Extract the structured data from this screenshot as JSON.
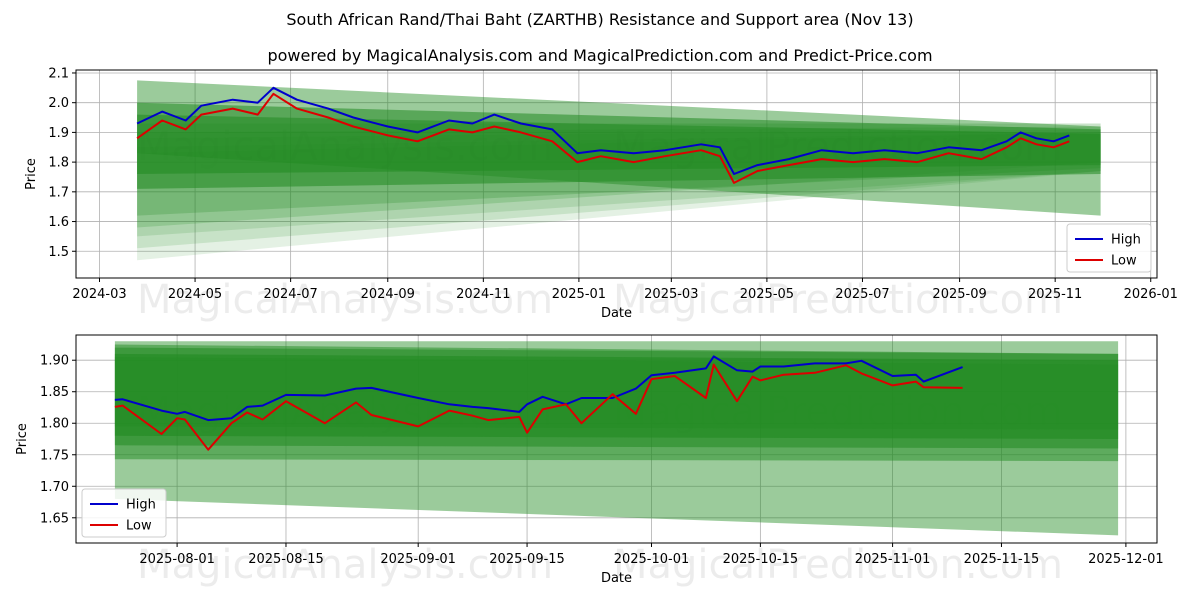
{
  "header": {
    "title": "South African Rand/Thai Baht (ZARTHB) Resistance and Support area (Nov 13)",
    "subtitle": "powered by MagicalAnalysis.com and MagicalPrediction.com and Predict-Price.com"
  },
  "colors": {
    "high": "#0000cc",
    "low": "#dd0000",
    "band": "#228B22"
  },
  "chart_data": [
    {
      "type": "line",
      "xlabel": "Date",
      "ylabel": "Price",
      "xlim": [
        "2024-02-15",
        "2026-01-05"
      ],
      "ylim": [
        1.41,
        2.11
      ],
      "x_ticks": [
        "2024-03",
        "2024-05",
        "2024-07",
        "2024-09",
        "2024-11",
        "2025-01",
        "2025-03",
        "2025-05",
        "2025-07",
        "2025-09",
        "2025-11",
        "2026-01"
      ],
      "y_ticks": [
        "1.5",
        "1.6",
        "1.7",
        "1.8",
        "1.9",
        "2.0",
        "2.1"
      ],
      "legend": {
        "position": "bottom-right",
        "entries": [
          "High",
          "Low"
        ]
      },
      "watermarks": [
        "MagicalAnalysis.com",
        "MagicalPrediction.com"
      ],
      "series": [
        {
          "name": "High",
          "x": [
            "2024-03-25",
            "2024-04-10",
            "2024-04-25",
            "2024-05-05",
            "2024-05-25",
            "2024-06-10",
            "2024-06-20",
            "2024-07-05",
            "2024-07-25",
            "2024-08-10",
            "2024-09-01",
            "2024-09-20",
            "2024-10-10",
            "2024-10-25",
            "2024-11-08",
            "2024-11-25",
            "2024-12-15",
            "2024-12-31",
            "2025-01-15",
            "2025-02-05",
            "2025-02-25",
            "2025-03-20",
            "2025-04-01",
            "2025-04-10",
            "2025-04-25",
            "2025-05-15",
            "2025-06-05",
            "2025-06-25",
            "2025-07-15",
            "2025-08-05",
            "2025-08-25",
            "2025-09-15",
            "2025-10-01",
            "2025-10-10",
            "2025-10-20",
            "2025-10-31",
            "2025-11-10"
          ],
          "values": [
            1.93,
            1.97,
            1.94,
            1.99,
            2.01,
            2.0,
            2.05,
            2.01,
            1.98,
            1.95,
            1.92,
            1.9,
            1.94,
            1.93,
            1.96,
            1.93,
            1.91,
            1.83,
            1.84,
            1.83,
            1.84,
            1.86,
            1.85,
            1.76,
            1.79,
            1.81,
            1.84,
            1.83,
            1.84,
            1.83,
            1.85,
            1.84,
            1.87,
            1.9,
            1.88,
            1.87,
            1.89
          ]
        },
        {
          "name": "Low",
          "x": [
            "2024-03-25",
            "2024-04-10",
            "2024-04-25",
            "2024-05-05",
            "2024-05-25",
            "2024-06-10",
            "2024-06-20",
            "2024-07-05",
            "2024-07-25",
            "2024-08-10",
            "2024-09-01",
            "2024-09-20",
            "2024-10-10",
            "2024-10-25",
            "2024-11-08",
            "2024-11-25",
            "2024-12-15",
            "2024-12-31",
            "2025-01-15",
            "2025-02-05",
            "2025-02-25",
            "2025-03-20",
            "2025-04-01",
            "2025-04-10",
            "2025-04-25",
            "2025-05-15",
            "2025-06-05",
            "2025-06-25",
            "2025-07-15",
            "2025-08-05",
            "2025-08-25",
            "2025-09-15",
            "2025-10-01",
            "2025-10-10",
            "2025-10-20",
            "2025-10-31",
            "2025-11-10"
          ],
          "values": [
            1.88,
            1.94,
            1.91,
            1.96,
            1.98,
            1.96,
            2.03,
            1.98,
            1.95,
            1.92,
            1.89,
            1.87,
            1.91,
            1.9,
            1.92,
            1.9,
            1.87,
            1.8,
            1.82,
            1.8,
            1.82,
            1.84,
            1.82,
            1.73,
            1.77,
            1.79,
            1.81,
            1.8,
            1.81,
            1.8,
            1.83,
            1.81,
            1.85,
            1.88,
            1.86,
            1.85,
            1.87
          ]
        }
      ],
      "bands_start": "2024-03-25",
      "bands_end": "2025-11-30",
      "bands": [
        {
          "start": [
            1.83,
            2.075
          ],
          "end": [
            1.62,
            1.92
          ],
          "opacity": 0.45
        },
        {
          "start": [
            1.71,
            2.0
          ],
          "end": [
            1.76,
            1.91
          ],
          "opacity": 0.55
        },
        {
          "start": [
            1.76,
            1.96
          ],
          "end": [
            1.79,
            1.895
          ],
          "opacity": 0.55
        },
        {
          "start": [
            1.62,
            1.93
          ],
          "end": [
            1.78,
            1.93
          ],
          "opacity": 0.25
        },
        {
          "start": [
            1.58,
            1.9
          ],
          "end": [
            1.8,
            1.92
          ],
          "opacity": 0.2
        },
        {
          "start": [
            1.55,
            1.88
          ],
          "end": [
            1.77,
            1.91
          ],
          "opacity": 0.15
        },
        {
          "start": [
            1.51,
            1.85
          ],
          "end": [
            1.77,
            1.9
          ],
          "opacity": 0.15
        },
        {
          "start": [
            1.47,
            1.83
          ],
          "end": [
            1.77,
            1.9
          ],
          "opacity": 0.12
        }
      ]
    },
    {
      "type": "line",
      "xlabel": "Date",
      "ylabel": "Price",
      "xlim": [
        "2025-07-19",
        "2025-12-05"
      ],
      "ylim": [
        1.61,
        1.94
      ],
      "x_ticks": [
        "2025-08-01",
        "2025-08-15",
        "2025-09-01",
        "2025-09-15",
        "2025-10-01",
        "2025-10-15",
        "2025-11-01",
        "2025-11-15",
        "2025-12-01"
      ],
      "y_ticks": [
        "1.65",
        "1.70",
        "1.75",
        "1.80",
        "1.85",
        "1.90"
      ],
      "legend": {
        "position": "bottom-left",
        "entries": [
          "High",
          "Low"
        ]
      },
      "watermarks": [
        "MagicalAnalysis.com",
        "MagicalPrediction.com"
      ],
      "series": [
        {
          "name": "High",
          "x": [
            "2025-07-24",
            "2025-07-25",
            "2025-07-30",
            "2025-08-01",
            "2025-08-02",
            "2025-08-05",
            "2025-08-08",
            "2025-08-10",
            "2025-08-12",
            "2025-08-15",
            "2025-08-20",
            "2025-08-24",
            "2025-08-26",
            "2025-09-01",
            "2025-09-05",
            "2025-09-08",
            "2025-09-10",
            "2025-09-14",
            "2025-09-15",
            "2025-09-17",
            "2025-09-20",
            "2025-09-22",
            "2025-09-26",
            "2025-09-29",
            "2025-10-01",
            "2025-10-04",
            "2025-10-08",
            "2025-10-09",
            "2025-10-12",
            "2025-10-14",
            "2025-10-15",
            "2025-10-18",
            "2025-10-22",
            "2025-10-26",
            "2025-10-28",
            "2025-11-01",
            "2025-11-04",
            "2025-11-05",
            "2025-11-10"
          ],
          "values": [
            1.837,
            1.838,
            1.82,
            1.815,
            1.818,
            1.805,
            1.808,
            1.826,
            1.828,
            1.845,
            1.844,
            1.855,
            1.856,
            1.84,
            1.83,
            1.826,
            1.824,
            1.818,
            1.83,
            1.842,
            1.83,
            1.84,
            1.84,
            1.855,
            1.876,
            1.88,
            1.887,
            1.906,
            1.884,
            1.882,
            1.89,
            1.89,
            1.895,
            1.895,
            1.899,
            1.875,
            1.877,
            1.866,
            1.889
          ]
        },
        {
          "name": "Low",
          "x": [
            "2025-07-24",
            "2025-07-25",
            "2025-07-30",
            "2025-08-01",
            "2025-08-02",
            "2025-08-05",
            "2025-08-08",
            "2025-08-10",
            "2025-08-12",
            "2025-08-15",
            "2025-08-20",
            "2025-08-24",
            "2025-08-26",
            "2025-09-01",
            "2025-09-05",
            "2025-09-08",
            "2025-09-10",
            "2025-09-14",
            "2025-09-15",
            "2025-09-17",
            "2025-09-20",
            "2025-09-22",
            "2025-09-26",
            "2025-09-29",
            "2025-10-01",
            "2025-10-04",
            "2025-10-08",
            "2025-10-09",
            "2025-10-12",
            "2025-10-14",
            "2025-10-15",
            "2025-10-18",
            "2025-10-22",
            "2025-10-26",
            "2025-10-28",
            "2025-11-01",
            "2025-11-04",
            "2025-11-05",
            "2025-11-10"
          ],
          "values": [
            1.826,
            1.828,
            1.783,
            1.808,
            1.806,
            1.758,
            1.8,
            1.817,
            1.806,
            1.835,
            1.8,
            1.833,
            1.813,
            1.795,
            1.82,
            1.812,
            1.805,
            1.81,
            1.785,
            1.822,
            1.83,
            1.8,
            1.846,
            1.815,
            1.87,
            1.875,
            1.84,
            1.893,
            1.835,
            1.874,
            1.868,
            1.877,
            1.88,
            1.892,
            1.879,
            1.86,
            1.866,
            1.857,
            1.856
          ]
        }
      ],
      "bands_start": "2025-07-24",
      "bands_end": "2025-11-30",
      "bands": [
        {
          "start": [
            1.68,
            1.93
          ],
          "end": [
            1.622,
            1.93
          ],
          "opacity": 0.45
        },
        {
          "start": [
            1.743,
            1.925
          ],
          "end": [
            1.74,
            1.91
          ],
          "opacity": 0.5
        },
        {
          "start": [
            1.765,
            1.92
          ],
          "end": [
            1.76,
            1.91
          ],
          "opacity": 0.55
        },
        {
          "start": [
            1.78,
            1.91
          ],
          "end": [
            1.775,
            1.9
          ],
          "opacity": 0.6
        },
        {
          "start": [
            1.795,
            1.905
          ],
          "end": [
            1.79,
            1.893
          ],
          "opacity": 0.4
        }
      ]
    }
  ]
}
